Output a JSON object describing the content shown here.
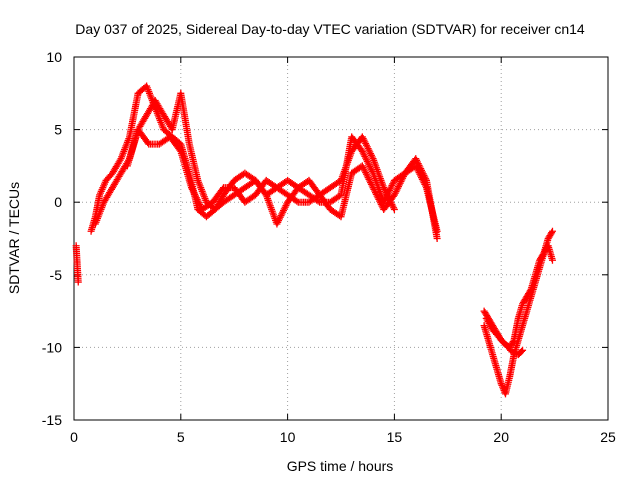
{
  "chart_data": {
    "type": "scatter",
    "title": "Day 037 of 2025, Sidereal Day-to-day VTEC variation (SDTVAR) for receiver cn14",
    "xlabel": "GPS time / hours",
    "ylabel": "SDTVAR / TECUs",
    "xlim": [
      0,
      25
    ],
    "ylim": [
      -15,
      10
    ],
    "xticks": [
      0,
      5,
      10,
      15,
      20,
      25
    ],
    "yticks": [
      -15,
      -10,
      -5,
      0,
      5,
      10
    ],
    "grid": true,
    "marker": "+",
    "color": "#ff0000",
    "series": [
      {
        "name": "seg-a",
        "x": [
          0.1,
          0.2
        ],
        "y": [
          -3.0,
          -5.5
        ]
      },
      {
        "name": "seg-b",
        "x": [
          0.8,
          1.0,
          1.2,
          1.5,
          1.8,
          2.2,
          2.6,
          3.0,
          3.4,
          3.8,
          4.2,
          4.6,
          5.0,
          5.4,
          5.8,
          6.2,
          6.6,
          7.0,
          7.5,
          8.0,
          8.5,
          9.0,
          9.5,
          10.0,
          10.5,
          11.0,
          11.5,
          12.0,
          12.5,
          13.0,
          13.5,
          14.0,
          14.5,
          15.0,
          15.5,
          16.0,
          16.5,
          17.0
        ],
        "y": [
          -2.0,
          -1.0,
          0.5,
          1.5,
          2.0,
          3.0,
          4.5,
          7.5,
          8.0,
          6.5,
          5.0,
          4.5,
          4.0,
          2.0,
          -0.5,
          -1.0,
          -0.5,
          0.5,
          1.5,
          2.0,
          1.5,
          0.5,
          1.0,
          1.5,
          1.0,
          0.5,
          0.0,
          0.0,
          0.5,
          4.5,
          3.5,
          2.0,
          0.0,
          1.5,
          2.0,
          3.0,
          1.5,
          -2.5
        ]
      },
      {
        "name": "seg-c",
        "x": [
          1.0,
          1.4,
          1.8,
          2.2,
          2.6,
          3.0,
          3.4,
          3.8,
          4.2,
          4.6,
          5.0,
          5.4,
          5.8,
          6.2,
          6.6,
          7.0,
          7.5,
          8.0,
          8.5,
          9.0,
          9.5,
          10.0,
          10.5,
          11.0,
          11.5,
          12.0,
          12.5,
          13.0,
          13.5,
          14.0,
          14.5,
          15.0,
          15.5,
          16.0,
          16.5,
          17.0
        ],
        "y": [
          -1.5,
          0.0,
          1.0,
          2.0,
          3.0,
          5.0,
          6.0,
          7.0,
          6.0,
          5.0,
          7.5,
          4.0,
          1.5,
          0.0,
          -0.5,
          0.0,
          0.5,
          1.0,
          1.5,
          0.5,
          -1.5,
          0.0,
          1.0,
          1.5,
          0.5,
          -0.5,
          -1.0,
          2.0,
          2.5,
          1.0,
          -0.5,
          0.5,
          2.0,
          2.5,
          1.0,
          -2.0
        ]
      },
      {
        "name": "seg-d",
        "x": [
          2.5,
          3.0,
          3.5,
          4.0,
          4.5,
          5.0,
          5.5,
          6.0,
          6.5,
          7.0,
          7.5,
          8.0,
          8.5,
          9.0,
          9.5,
          10.0,
          10.5,
          11.0,
          11.5,
          12.0,
          12.5,
          13.0,
          13.5,
          14.0,
          14.5,
          15.0
        ],
        "y": [
          2.5,
          5.0,
          4.0,
          4.0,
          4.5,
          3.5,
          1.0,
          -0.5,
          0.0,
          1.0,
          1.0,
          0.0,
          0.5,
          1.5,
          1.0,
          0.5,
          0.0,
          0.0,
          0.5,
          1.0,
          1.5,
          3.5,
          4.5,
          3.0,
          1.0,
          -0.5
        ]
      },
      {
        "name": "seg-e",
        "x": [
          19.2,
          19.4,
          19.6,
          19.8,
          20.0,
          20.2,
          20.4,
          20.6,
          20.8,
          21.0,
          21.2,
          21.4,
          21.6,
          21.8,
          22.0,
          22.2,
          22.4
        ],
        "y": [
          -7.5,
          -8.0,
          -8.5,
          -9.0,
          -9.5,
          -9.8,
          -10.0,
          -9.5,
          -8.0,
          -7.0,
          -6.5,
          -6.0,
          -5.0,
          -4.0,
          -3.5,
          -2.5,
          -2.0
        ]
      },
      {
        "name": "seg-f",
        "x": [
          19.2,
          19.4,
          19.6,
          19.8,
          20.0,
          20.2,
          20.4,
          20.6,
          20.8,
          21.0,
          21.2,
          21.4,
          21.6,
          21.8,
          22.0,
          22.2,
          22.4
        ],
        "y": [
          -8.5,
          -9.5,
          -10.5,
          -11.5,
          -12.5,
          -13.2,
          -12.0,
          -10.5,
          -9.5,
          -8.5,
          -7.5,
          -6.5,
          -5.5,
          -4.5,
          -3.5,
          -3.0,
          -4.0
        ]
      },
      {
        "name": "seg-g",
        "x": [
          19.3,
          19.6,
          19.9,
          20.2,
          20.5,
          20.8,
          21.0
        ],
        "y": [
          -8.0,
          -8.8,
          -9.3,
          -9.8,
          -10.3,
          -10.5,
          -10.2
        ]
      }
    ]
  }
}
